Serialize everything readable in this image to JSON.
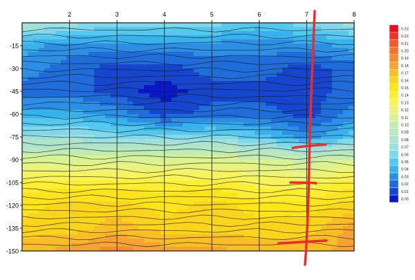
{
  "chart_data": {
    "type": "heatmap",
    "x_ticks": [
      "2",
      "3",
      "4",
      "5",
      "6",
      "7",
      "8"
    ],
    "y_ticks": [
      "-15",
      "-30",
      "-45",
      "-60",
      "-75",
      "-90",
      "-105",
      "-120",
      "-135",
      "-150"
    ],
    "x_range": [
      1,
      8
    ],
    "y_range": [
      -150,
      0
    ],
    "colorbar": {
      "ticks": [
        "0.23",
        "0.22",
        "0.21",
        "0.20",
        "0.19",
        "0.18",
        "0.17",
        "0.16",
        "0.15",
        "0.14",
        "0.13",
        "0.12",
        "0.11",
        "0.10",
        "0.09",
        "0.08",
        "0.07",
        "0.06",
        "0.05",
        "0.04",
        "0.03",
        "0.02",
        "0.01",
        "0.00"
      ],
      "colors": [
        "#e8111d",
        "#ee3524",
        "#f2582a",
        "#f4712f",
        "#f58c32",
        "#f6a333",
        "#f9bd26",
        "#fbd51c",
        "#fde51a",
        "#fdee32",
        "#f7f35a",
        "#eaf37c",
        "#d9f292",
        "#c4ecb0",
        "#b7e8bf",
        "#aee3cc",
        "#9ee0de",
        "#7fd8ec",
        "#55c8ef",
        "#38b2ed",
        "#2c8fe6",
        "#1f6ddb",
        "#1546cd",
        "#0718c8"
      ]
    },
    "z_grid": {
      "x": [
        1,
        2,
        3,
        4,
        5,
        6,
        7,
        8
      ],
      "y": [
        0,
        -15,
        -30,
        -45,
        -60,
        -75,
        -90,
        -105,
        -120,
        -135,
        -150
      ],
      "z": [
        [
          0.08,
          0.07,
          0.06,
          0.06,
          0.06,
          0.05,
          0.06,
          0.07
        ],
        [
          0.04,
          0.03,
          0.03,
          0.03,
          0.03,
          0.03,
          0.03,
          0.04
        ],
        [
          0.03,
          0.02,
          0.01,
          0.01,
          0.02,
          0.02,
          0.01,
          0.02
        ],
        [
          0.02,
          0.02,
          0.01,
          0.0,
          0.01,
          0.01,
          0.01,
          0.02
        ],
        [
          0.04,
          0.04,
          0.03,
          0.01,
          0.02,
          0.02,
          0.01,
          0.03
        ],
        [
          0.07,
          0.07,
          0.06,
          0.06,
          0.06,
          0.05,
          0.03,
          0.05
        ],
        [
          0.11,
          0.11,
          0.11,
          0.11,
          0.11,
          0.11,
          0.1,
          0.11
        ],
        [
          0.14,
          0.14,
          0.14,
          0.14,
          0.14,
          0.13,
          0.13,
          0.14
        ],
        [
          0.15,
          0.16,
          0.16,
          0.15,
          0.16,
          0.15,
          0.15,
          0.16
        ],
        [
          0.16,
          0.16,
          0.17,
          0.16,
          0.16,
          0.16,
          0.16,
          0.18
        ],
        [
          0.17,
          0.18,
          0.19,
          0.18,
          0.18,
          0.17,
          0.17,
          0.18
        ]
      ]
    },
    "annotations": [
      "hand-drawn red vertical line near x=7 with short horizontal tick marks"
    ],
    "grid": true
  }
}
